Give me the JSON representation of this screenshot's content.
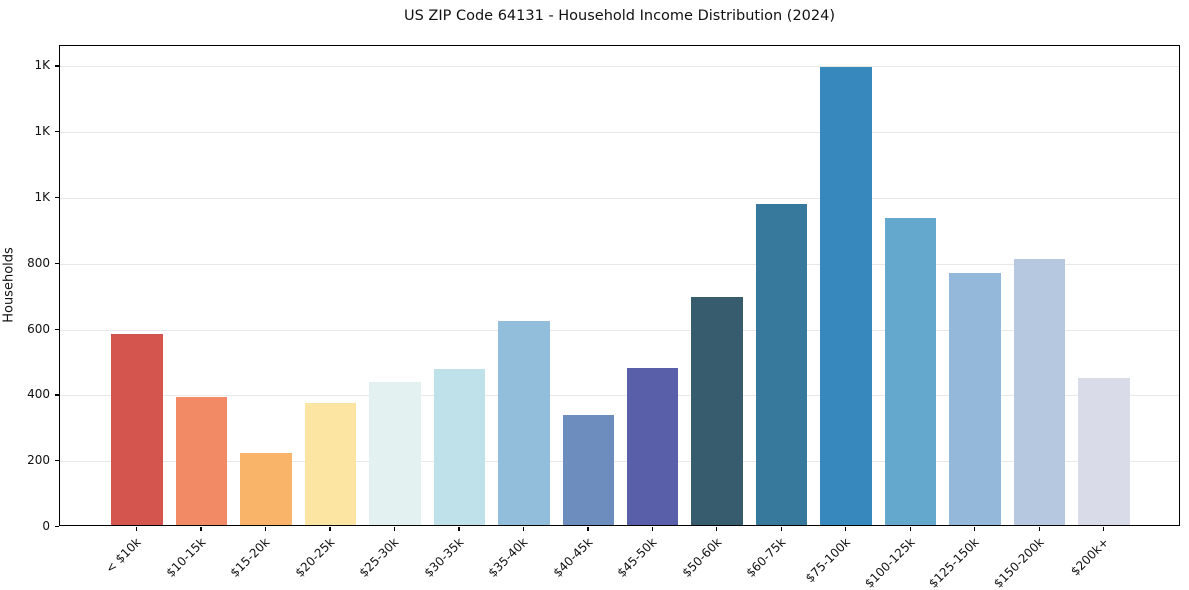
{
  "chart_data": {
    "type": "bar",
    "title": "US ZIP Code 64131 - Household Income Distribution (2024)",
    "xlabel": "",
    "ylabel": "Households",
    "categories": [
      "< $10k",
      "$10-15k",
      "$15-20k",
      "$20-25k",
      "$25-30k",
      "$30-35k",
      "$35-40k",
      "$40-45k",
      "$45-50k",
      "$50-60k",
      "$60-75k",
      "$75-100k",
      "$100-125k",
      "$125-150k",
      "$150-200k",
      "$200k+"
    ],
    "values": [
      581,
      389,
      218,
      372,
      436,
      473,
      620,
      334,
      476,
      694,
      975,
      1392,
      933,
      767,
      809,
      448
    ],
    "bar_colors": [
      "#d4544e",
      "#f28a66",
      "#fab469",
      "#fce4a2",
      "#e4f1f1",
      "#bee1ea",
      "#92bedb",
      "#6d8dbf",
      "#5a5fa9",
      "#365c6e",
      "#37799c",
      "#3789bd",
      "#64a9cd",
      "#93b8d9",
      "#b6c8e0",
      "#d9dbe8"
    ],
    "ylim": [
      0,
      1462
    ],
    "xlim": [
      -1.19,
      16.19
    ],
    "bar_width_data_units": 0.8,
    "yticks": {
      "values": [
        0,
        200,
        400,
        600,
        800,
        1000,
        1200,
        1400
      ],
      "labels": [
        "0",
        "200",
        "400",
        "600",
        "800",
        "1K",
        "1K",
        "1K"
      ]
    },
    "grid": "horizontal",
    "legend": "none",
    "colors": {
      "background": "#ffffff",
      "grid": "#e8e8e8",
      "spine": "#000000",
      "text": "#111111"
    }
  }
}
